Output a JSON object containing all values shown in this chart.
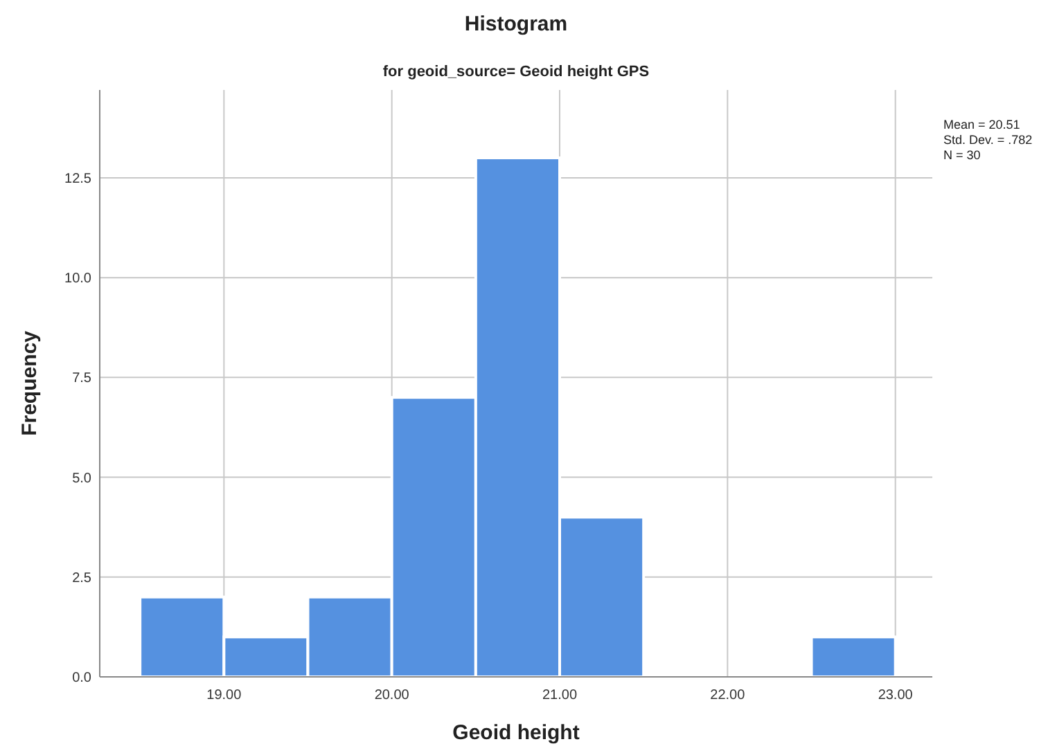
{
  "chart_data": {
    "type": "histogram",
    "title": "Histogram",
    "subtitle": "for geoid_source= Geoid height GPS",
    "xlabel": "Geoid height",
    "ylabel": "Frequency",
    "bins": [
      18.5,
      19,
      19.5,
      20,
      20.5,
      21,
      21.5,
      22,
      22.5,
      23
    ],
    "values": [
      2,
      1,
      2,
      7,
      13,
      4,
      0,
      0,
      1
    ],
    "color": "#5591e0",
    "xlim": [
      18.26,
      23.22
    ],
    "xticks": [
      {
        "value": 19,
        "label": "19.00"
      },
      {
        "value": 20,
        "label": "20.00"
      },
      {
        "value": 21,
        "label": "21.00"
      },
      {
        "value": 22,
        "label": "22.00"
      },
      {
        "value": 23,
        "label": "23.00"
      }
    ],
    "ylim": [
      0,
      14.7
    ],
    "yticks": [
      {
        "value": 0,
        "label": "0.0"
      },
      {
        "value": 2.5,
        "label": "2.5"
      },
      {
        "value": 5,
        "label": "5.0"
      },
      {
        "value": 7.5,
        "label": "7.5"
      },
      {
        "value": 10,
        "label": "10.0"
      },
      {
        "value": 12.5,
        "label": "12.5"
      }
    ],
    "grid": true,
    "annotations": [
      "Mean = 20.51",
      "Std. Dev. = .782",
      "N = 30"
    ]
  }
}
